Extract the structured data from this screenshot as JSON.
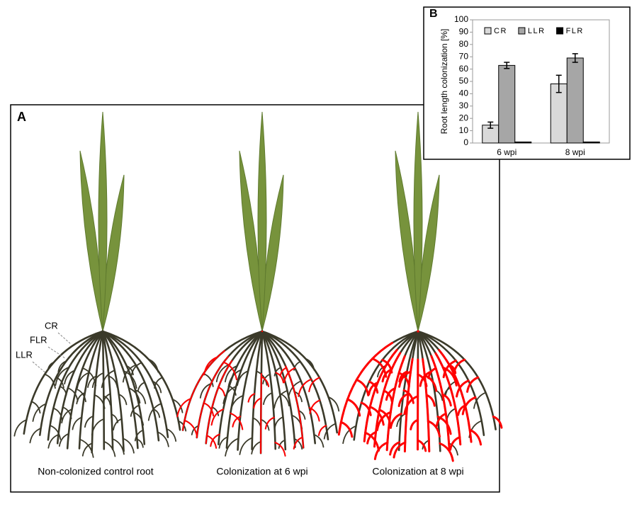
{
  "panel_a": {
    "label": "A",
    "root_labels": [
      "CR",
      "FLR",
      "LLR"
    ],
    "captions": [
      "Non-colonized control root",
      "Colonization at 6 wpi",
      "Colonization at 8 wpi"
    ]
  },
  "chart_data": {
    "type": "bar",
    "panel_label": "B",
    "ylabel": "Root length colonization [%]",
    "categories": [
      "6 wpi",
      "8 wpi"
    ],
    "series": [
      {
        "name": "CR",
        "color": "#d9d9d9",
        "values": [
          14.5,
          48
        ],
        "errors": [
          2.5,
          7
        ]
      },
      {
        "name": "LLR",
        "color": "#a6a6a6",
        "values": [
          63,
          69
        ],
        "errors": [
          2.5,
          3.5
        ]
      },
      {
        "name": "FLR",
        "color": "#000000",
        "values": [
          0,
          0
        ]
      }
    ],
    "ylim": [
      0,
      100
    ],
    "yticks": [
      0,
      10,
      20,
      30,
      40,
      50,
      60,
      70,
      80,
      90,
      100
    ]
  }
}
